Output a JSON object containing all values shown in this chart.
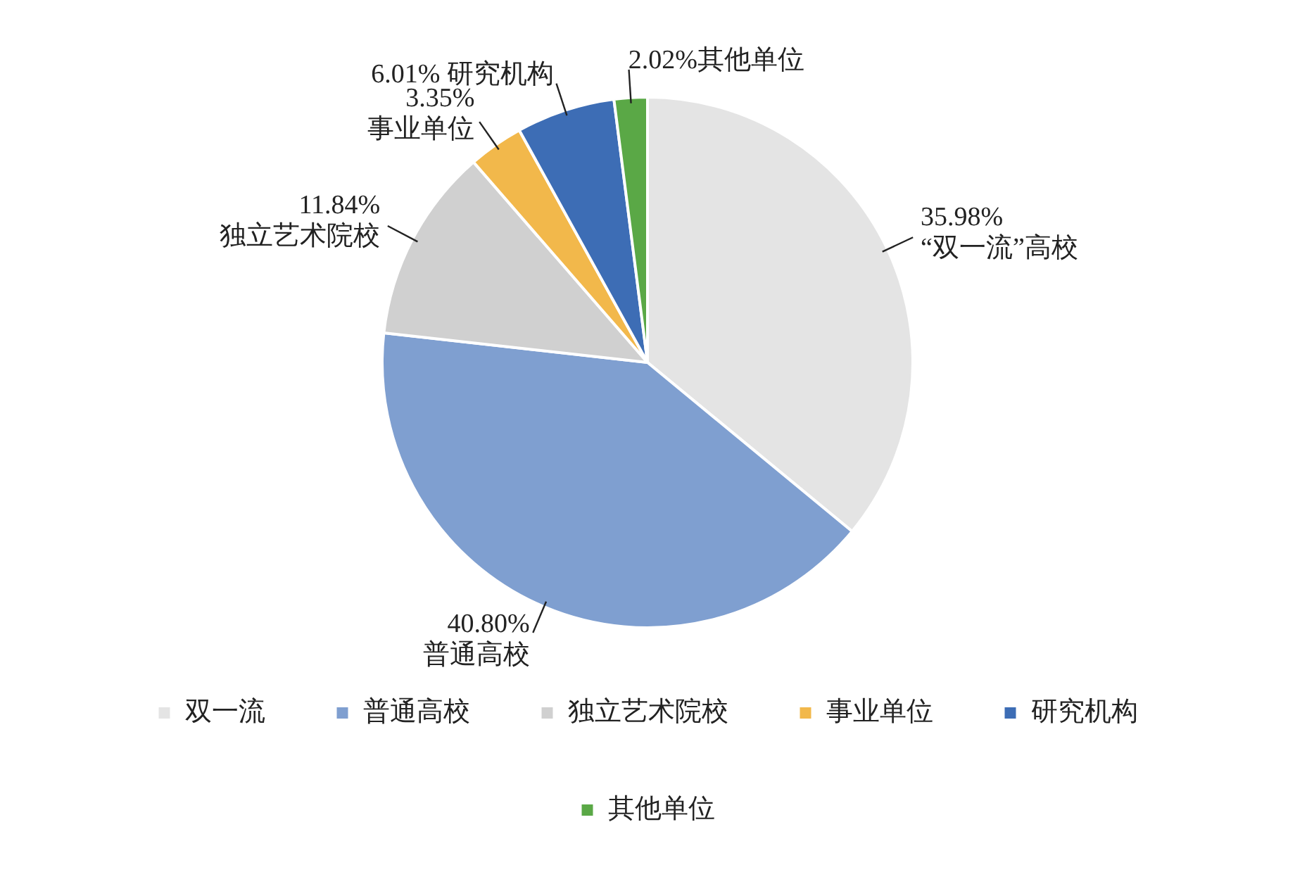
{
  "chart_data": {
    "type": "pie",
    "categories": [
      "双一流",
      "普通高校",
      "独立艺术院校",
      "事业单位",
      "研究机构",
      "其他单位"
    ],
    "values": [
      35.98,
      40.8,
      11.84,
      3.35,
      6.01,
      2.02
    ],
    "colors": [
      "#e4e4e4",
      "#7f9fd0",
      "#d0d0d0",
      "#f2b84b",
      "#3d6db5",
      "#5aa846"
    ],
    "value_labels": [
      "35.98%\n“双一流”高校",
      "40.80%\n普通高校",
      "11.84%\n独立艺术院校",
      "3.35%\n事业单位",
      "6.01% 研究机构",
      "2.02%其他单位"
    ],
    "legend": "bottom"
  }
}
